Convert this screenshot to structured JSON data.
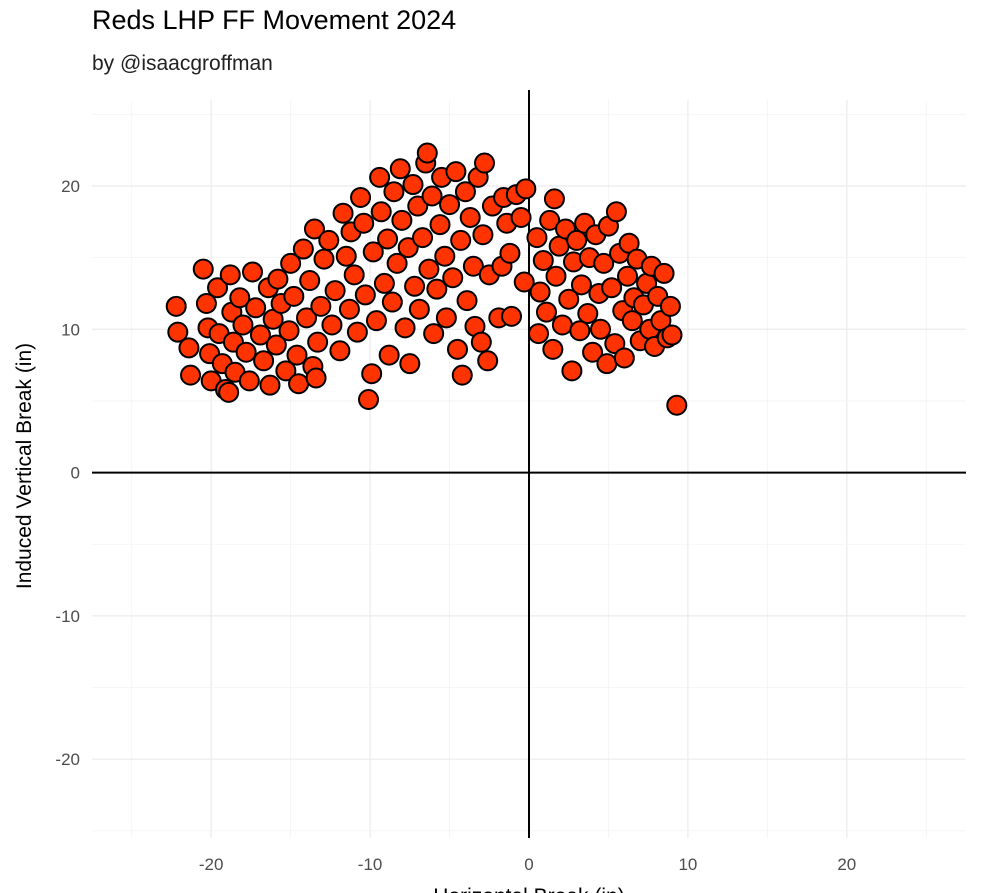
{
  "chart_data": {
    "type": "scatter",
    "title": "Reds LHP FF Movement 2024",
    "subtitle": "by @isaacgroffman",
    "xlabel": "Horizontal Break (in)",
    "ylabel": "Induced Vertical Break (in)",
    "xlim": [
      -27.5,
      27.5
    ],
    "ylim": [
      -25.5,
      26
    ],
    "x_ticks": [
      -20,
      -10,
      0,
      10,
      20
    ],
    "y_ticks": [
      -20,
      -10,
      0,
      10,
      20
    ],
    "grid": true,
    "reference_lines": {
      "x": 0,
      "y": 0
    },
    "point_fill": "#ff3300",
    "point_stroke": "#000000",
    "points": [
      [
        -22.2,
        11.6
      ],
      [
        -22.1,
        9.8
      ],
      [
        -21.4,
        8.7
      ],
      [
        -21.3,
        6.8
      ],
      [
        -20.5,
        14.2
      ],
      [
        -20.3,
        11.8
      ],
      [
        -20.2,
        10.1
      ],
      [
        -20.1,
        8.3
      ],
      [
        -20.0,
        6.4
      ],
      [
        -19.6,
        12.9
      ],
      [
        -19.5,
        9.7
      ],
      [
        -19.3,
        7.6
      ],
      [
        -19.1,
        5.8
      ],
      [
        -18.8,
        13.8
      ],
      [
        -18.7,
        11.2
      ],
      [
        -18.6,
        9.1
      ],
      [
        -18.5,
        7.0
      ],
      [
        -18.9,
        5.6
      ],
      [
        -18.2,
        12.2
      ],
      [
        -18.0,
        10.3
      ],
      [
        -17.8,
        8.4
      ],
      [
        -17.6,
        6.4
      ],
      [
        -17.4,
        14.0
      ],
      [
        -17.2,
        11.5
      ],
      [
        -16.9,
        9.6
      ],
      [
        -16.7,
        7.8
      ],
      [
        -16.4,
        12.9
      ],
      [
        -16.3,
        6.1
      ],
      [
        -16.1,
        10.7
      ],
      [
        -15.9,
        8.9
      ],
      [
        -15.8,
        13.5
      ],
      [
        -15.6,
        11.8
      ],
      [
        -15.3,
        7.1
      ],
      [
        -15.1,
        9.9
      ],
      [
        -15.0,
        14.6
      ],
      [
        -14.8,
        12.3
      ],
      [
        -14.6,
        8.2
      ],
      [
        -14.5,
        6.2
      ],
      [
        -14.2,
        15.6
      ],
      [
        -14.0,
        10.8
      ],
      [
        -13.8,
        13.4
      ],
      [
        -13.6,
        7.4
      ],
      [
        -13.5,
        17.0
      ],
      [
        -13.3,
        9.1
      ],
      [
        -13.1,
        11.6
      ],
      [
        -13.4,
        6.6
      ],
      [
        -12.9,
        14.9
      ],
      [
        -12.6,
        16.2
      ],
      [
        -12.4,
        10.3
      ],
      [
        -12.2,
        12.7
      ],
      [
        -11.9,
        8.5
      ],
      [
        -11.7,
        18.1
      ],
      [
        -11.5,
        15.1
      ],
      [
        -11.3,
        11.4
      ],
      [
        -11.2,
        16.8
      ],
      [
        -11.0,
        13.8
      ],
      [
        -10.8,
        9.8
      ],
      [
        -10.6,
        19.2
      ],
      [
        -10.4,
        17.4
      ],
      [
        -10.3,
        12.4
      ],
      [
        -10.1,
        5.1
      ],
      [
        -9.9,
        6.9
      ],
      [
        -9.8,
        15.4
      ],
      [
        -9.6,
        10.6
      ],
      [
        -9.4,
        20.6
      ],
      [
        -9.3,
        18.2
      ],
      [
        -9.1,
        13.2
      ],
      [
        -8.9,
        16.3
      ],
      [
        -8.8,
        8.2
      ],
      [
        -8.6,
        11.9
      ],
      [
        -8.5,
        19.6
      ],
      [
        -8.3,
        14.6
      ],
      [
        -8.1,
        21.2
      ],
      [
        -8.0,
        17.6
      ],
      [
        -7.8,
        10.1
      ],
      [
        -7.6,
        15.7
      ],
      [
        -7.5,
        7.6
      ],
      [
        -7.3,
        20.1
      ],
      [
        -7.2,
        13.0
      ],
      [
        -7.0,
        18.6
      ],
      [
        -6.9,
        11.4
      ],
      [
        -6.7,
        16.4
      ],
      [
        -6.5,
        21.6
      ],
      [
        -6.4,
        22.3
      ],
      [
        -6.3,
        14.2
      ],
      [
        -6.1,
        19.3
      ],
      [
        -6.0,
        9.7
      ],
      [
        -5.8,
        12.8
      ],
      [
        -5.6,
        17.3
      ],
      [
        -5.5,
        20.6
      ],
      [
        -5.3,
        15.1
      ],
      [
        -5.2,
        10.8
      ],
      [
        -5.0,
        18.7
      ],
      [
        -4.8,
        13.6
      ],
      [
        -4.6,
        21.0
      ],
      [
        -4.5,
        8.6
      ],
      [
        -4.3,
        16.2
      ],
      [
        -4.2,
        6.8
      ],
      [
        -4.0,
        19.6
      ],
      [
        -3.9,
        12.0
      ],
      [
        -3.7,
        17.8
      ],
      [
        -3.5,
        14.4
      ],
      [
        -3.4,
        10.2
      ],
      [
        -3.2,
        20.6
      ],
      [
        -3.0,
        9.1
      ],
      [
        -2.9,
        16.6
      ],
      [
        -2.8,
        21.6
      ],
      [
        -2.6,
        7.8
      ],
      [
        -2.5,
        13.8
      ],
      [
        -2.3,
        18.6
      ],
      [
        -1.9,
        10.8
      ],
      [
        -1.7,
        14.4
      ],
      [
        -1.6,
        19.2
      ],
      [
        -1.4,
        17.4
      ],
      [
        -1.2,
        15.3
      ],
      [
        -1.1,
        10.9
      ],
      [
        -0.8,
        19.4
      ],
      [
        -0.5,
        17.8
      ],
      [
        -0.3,
        13.3
      ],
      [
        -0.2,
        19.8
      ],
      [
        0.5,
        16.4
      ],
      [
        0.6,
        9.7
      ],
      [
        0.7,
        12.6
      ],
      [
        0.9,
        14.8
      ],
      [
        1.1,
        11.2
      ],
      [
        1.3,
        17.6
      ],
      [
        1.5,
        8.6
      ],
      [
        1.6,
        19.1
      ],
      [
        1.7,
        13.7
      ],
      [
        1.9,
        15.8
      ],
      [
        2.1,
        10.3
      ],
      [
        2.3,
        17.0
      ],
      [
        2.5,
        12.1
      ],
      [
        2.7,
        7.1
      ],
      [
        2.8,
        14.7
      ],
      [
        3.0,
        16.2
      ],
      [
        3.2,
        9.9
      ],
      [
        3.3,
        13.1
      ],
      [
        3.5,
        17.4
      ],
      [
        3.7,
        11.1
      ],
      [
        3.8,
        15.0
      ],
      [
        4.0,
        8.4
      ],
      [
        4.2,
        16.6
      ],
      [
        4.4,
        12.5
      ],
      [
        4.5,
        10.0
      ],
      [
        4.7,
        14.6
      ],
      [
        4.9,
        7.6
      ],
      [
        5.0,
        17.2
      ],
      [
        5.2,
        12.9
      ],
      [
        5.4,
        9.0
      ],
      [
        5.5,
        18.2
      ],
      [
        5.7,
        15.3
      ],
      [
        5.9,
        11.3
      ],
      [
        6.0,
        8.0
      ],
      [
        6.2,
        13.7
      ],
      [
        6.3,
        16.0
      ],
      [
        6.5,
        10.6
      ],
      [
        6.6,
        12.2
      ],
      [
        6.8,
        14.9
      ],
      [
        7.0,
        9.2
      ],
      [
        7.2,
        11.7
      ],
      [
        7.4,
        13.2
      ],
      [
        7.6,
        10.0
      ],
      [
        7.7,
        14.4
      ],
      [
        7.9,
        8.8
      ],
      [
        8.1,
        12.3
      ],
      [
        8.3,
        10.6
      ],
      [
        8.5,
        13.9
      ],
      [
        8.7,
        9.4
      ],
      [
        8.9,
        11.6
      ],
      [
        9.0,
        9.6
      ],
      [
        9.3,
        4.7
      ]
    ]
  }
}
